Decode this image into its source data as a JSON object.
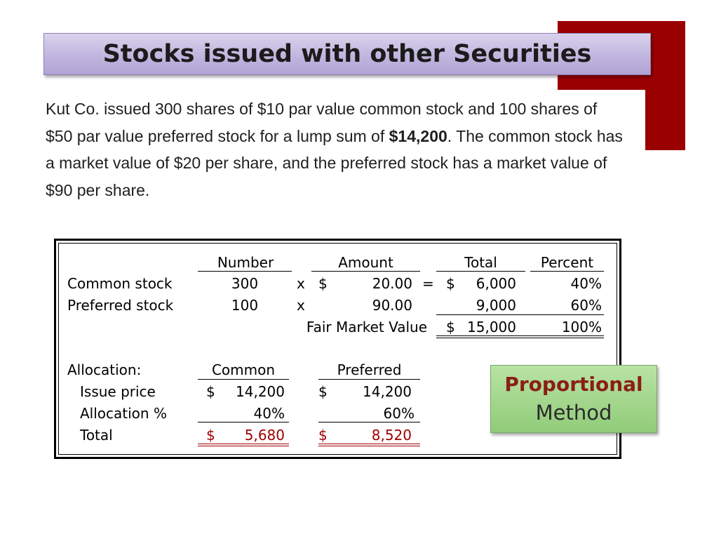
{
  "slide": {
    "title": "Stocks issued with other Securities",
    "paragraph": {
      "part1": "Kut Co. issued 300 shares of $10 par value common stock and 100 shares of $50 par value preferred stock for a lump sum of ",
      "bold": "$14,200",
      "part2": ". The common stock has a market value of $20 per share, and the preferred stock has a market value of $90 per share."
    },
    "callout": {
      "line1": "Proportional",
      "line2": "Method"
    },
    "colors": {
      "accent_red": "#9a0000",
      "title_bg": "#c3b8e0",
      "callout_bg": "#a3d68c",
      "value_red": "#a00000"
    }
  },
  "table": {
    "headers": {
      "number": "Number",
      "amount": "Amount",
      "total": "Total",
      "percent": "Percent"
    },
    "rows": [
      {
        "label": "Common stock",
        "number": "300",
        "op": "x",
        "dollar": "$",
        "amount": "20.00",
        "eq": "=",
        "tdollar": "$",
        "total": "6,000",
        "percent": "40%"
      },
      {
        "label": "Preferred stock",
        "number": "100",
        "op": "x",
        "dollar": "",
        "amount": "90.00",
        "eq": "",
        "tdollar": "",
        "total": "9,000",
        "percent": "60%"
      }
    ],
    "fmv": {
      "label": "Fair Market Value",
      "dollar": "$",
      "total": "15,000",
      "percent": "100%"
    },
    "allocation": {
      "label": "Allocation:",
      "col_common": "Common",
      "col_preferred": "Preferred",
      "issue_price": {
        "label": "Issue price",
        "c_dollar": "$",
        "common": "14,200",
        "p_dollar": "$",
        "preferred": "14,200"
      },
      "alloc_pct": {
        "label": "Allocation %",
        "common": "40%",
        "preferred": "60%"
      },
      "total": {
        "label": "Total",
        "c_dollar": "$",
        "common": "5,680",
        "p_dollar": "$",
        "preferred": "8,520"
      }
    }
  }
}
